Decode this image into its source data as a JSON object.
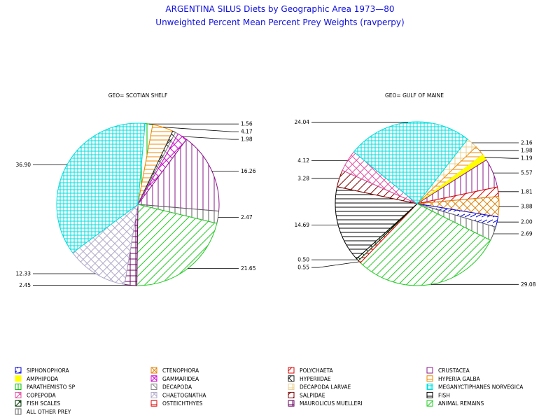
{
  "title_line1": "ARGENTINA SILUS Diets by Geographic Area 1973—80",
  "title_line2": "Unweighted Percent Mean Percent Prey  Weights (ravperpy)",
  "chart_data": [
    {
      "type": "pie",
      "title": "GEO= SCOTIAN SHELF",
      "slices": [
        {
          "cat": "PARATHEMISTO SP",
          "value": 1.56,
          "label": "1.56"
        },
        {
          "cat": "HYPERIA GALBA",
          "value": 4.17,
          "label": "4.17"
        },
        {
          "cat": "HYPERIIDAE",
          "value": 0.6,
          "label": ""
        },
        {
          "cat": "DECAPODA",
          "value": 0.6,
          "label": ""
        },
        {
          "cat": "GAMMARIDEA",
          "value": 1.98,
          "label": "1.98"
        },
        {
          "cat": "CRUSTACEA",
          "value": 16.26,
          "label": "16.26"
        },
        {
          "cat": "ALL OTHER PREY",
          "value": 2.47,
          "label": "2.47"
        },
        {
          "cat": "ANIMAL REMAINS",
          "value": 21.65,
          "label": "21.65"
        },
        {
          "cat": "MAUROLICUS MUELLERI",
          "value": 2.45,
          "label": "2.45"
        },
        {
          "cat": "CHAETOGNATHA",
          "value": 12.33,
          "label": "12.33"
        },
        {
          "cat": "MEGANYCTIPHANES NORVEGICA",
          "value": 36.9,
          "label": "36.90"
        }
      ]
    },
    {
      "type": "pie",
      "title": "GEO= GULF OF MAINE",
      "slices": [
        {
          "cat": "DECAPODA LARVAE",
          "value": 2.16,
          "label": "2.16"
        },
        {
          "cat": "HYPERIA GALBA",
          "value": 1.98,
          "label": "1.98"
        },
        {
          "cat": "AMPHIPODA",
          "value": 1.19,
          "label": "1.19"
        },
        {
          "cat": "CRUSTACEA",
          "value": 5.57,
          "label": "5.57"
        },
        {
          "cat": "POLYCHAETA",
          "value": 1.81,
          "label": "1.81"
        },
        {
          "cat": "CTENOPHORA",
          "value": 3.88,
          "label": "3.88"
        },
        {
          "cat": "SIPHONOPHORA",
          "value": 2.0,
          "label": "2.00"
        },
        {
          "cat": "ALL OTHER PREY",
          "value": 2.69,
          "label": "2.69"
        },
        {
          "cat": "ANIMAL REMAINS",
          "value": 29.08,
          "label": "29.08"
        },
        {
          "cat": "OSTEICHTHYES",
          "value": 0.55,
          "label": "0.55"
        },
        {
          "cat": "FISH SCALES",
          "value": 0.5,
          "label": "0.50"
        },
        {
          "cat": "FISH",
          "value": 14.69,
          "label": "14.69"
        },
        {
          "cat": "SALPIDAE",
          "value": 3.28,
          "label": "3.28"
        },
        {
          "cat": "COPEPODA",
          "value": 4.12,
          "label": "4.12"
        },
        {
          "cat": "MEGANYCTIPHANES NORVEGICA",
          "value": 24.04,
          "label": "24.04"
        }
      ]
    }
  ],
  "legend": [
    {
      "name": "SIPHONOPHORA",
      "color": "#0000dd",
      "pattern": "solidline"
    },
    {
      "name": "CTENOPHORA",
      "color": "#e08000",
      "pattern": "cross45"
    },
    {
      "name": "POLYCHAETA",
      "color": "#dd0000",
      "pattern": "slash"
    },
    {
      "name": "CRUSTACEA",
      "color": "#8a1a8a",
      "pattern": "vert"
    },
    {
      "name": "AMPHIPODA",
      "color": "#ffff00",
      "pattern": "solid"
    },
    {
      "name": "GAMMARIDEA",
      "color": "#cc00cc",
      "pattern": "cross45"
    },
    {
      "name": "HYPERIIDAE",
      "color": "#202020",
      "pattern": "cross45"
    },
    {
      "name": "HYPERIA GALBA",
      "color": "#f08a00",
      "pattern": "horiz"
    },
    {
      "name": "PARATHEMISTO SP",
      "color": "#00bb00",
      "pattern": "vert"
    },
    {
      "name": "DECAPODA",
      "color": "#808080",
      "pattern": "back"
    },
    {
      "name": "DECAPODA LARVAE",
      "color": "#e8d090",
      "pattern": "grid"
    },
    {
      "name": "MEGANYCTIPHANES NORVEGICA",
      "color": "#00dddd",
      "pattern": "gridfine"
    },
    {
      "name": "COPEPODA",
      "color": "#e050a0",
      "pattern": "cross45"
    },
    {
      "name": "CHAETOGNATHA",
      "color": "#b0a8c8",
      "pattern": "cross45"
    },
    {
      "name": "SALPIDAE",
      "color": "#800000",
      "pattern": "slash"
    },
    {
      "name": "FISH",
      "color": "#000000",
      "pattern": "horiz"
    },
    {
      "name": "FISH SCALES",
      "color": "#003300",
      "pattern": "cross45"
    },
    {
      "name": "OSTEICHTHYES",
      "color": "#dd0000",
      "pattern": "horiz"
    },
    {
      "name": "MAUROLICUS MUELLERI",
      "color": "#6a0060",
      "pattern": "grid"
    },
    {
      "name": "ANIMAL REMAINS",
      "color": "#22cc22",
      "pattern": "slash"
    },
    {
      "name": "ALL OTHER PREY",
      "color": "#606060",
      "pattern": "vert"
    }
  ]
}
